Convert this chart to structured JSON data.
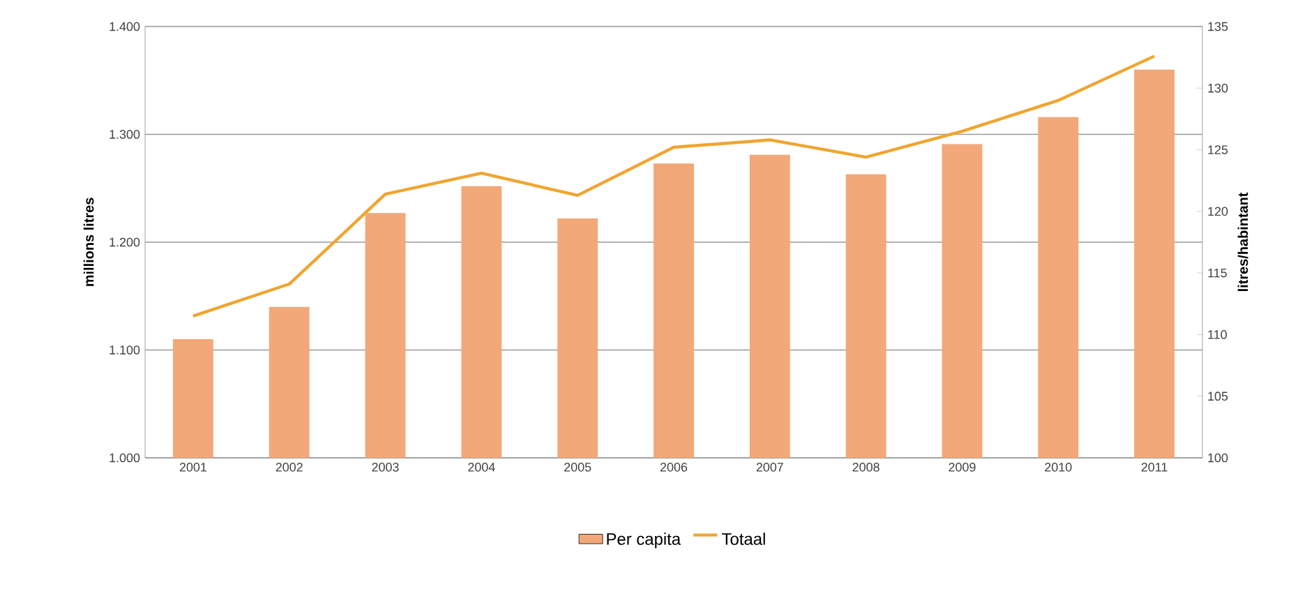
{
  "chart_data": {
    "type": "bar",
    "categories": [
      "2001",
      "2002",
      "2003",
      "2004",
      "2005",
      "2006",
      "2007",
      "2008",
      "2009",
      "2010",
      "2011"
    ],
    "series": [
      {
        "name": "Per capita",
        "color": "#f2a878",
        "values": [
          1.11,
          1.14,
          1.227,
          1.252,
          1.222,
          1.273,
          1.281,
          1.263,
          1.291,
          1.316,
          1.36
        ]
      },
      {
        "name": "Totaal",
        "type": "line",
        "axis": "y2",
        "color": "#f0a530",
        "values": [
          111.5,
          114.1,
          121.4,
          123.1,
          121.3,
          125.2,
          125.8,
          124.4,
          126.5,
          129.0,
          132.6
        ]
      }
    ],
    "ylabel": "millions litres",
    "y2label": "litres/habintant",
    "ylim": [
      1.0,
      1.4
    ],
    "yticks": [
      {
        "value": 1.0,
        "label": "1.000"
      },
      {
        "value": 1.1,
        "label": "1.100"
      },
      {
        "value": 1.2,
        "label": "1.200"
      },
      {
        "value": 1.3,
        "label": "1.300"
      },
      {
        "value": 1.4,
        "label": "1.400"
      }
    ],
    "y2lim": [
      100,
      135
    ],
    "y2ticks": [
      100,
      105,
      110,
      115,
      120,
      125,
      130,
      135
    ],
    "grid": "y",
    "legend": "bottom",
    "marker": "none",
    "line_style": "solid"
  }
}
